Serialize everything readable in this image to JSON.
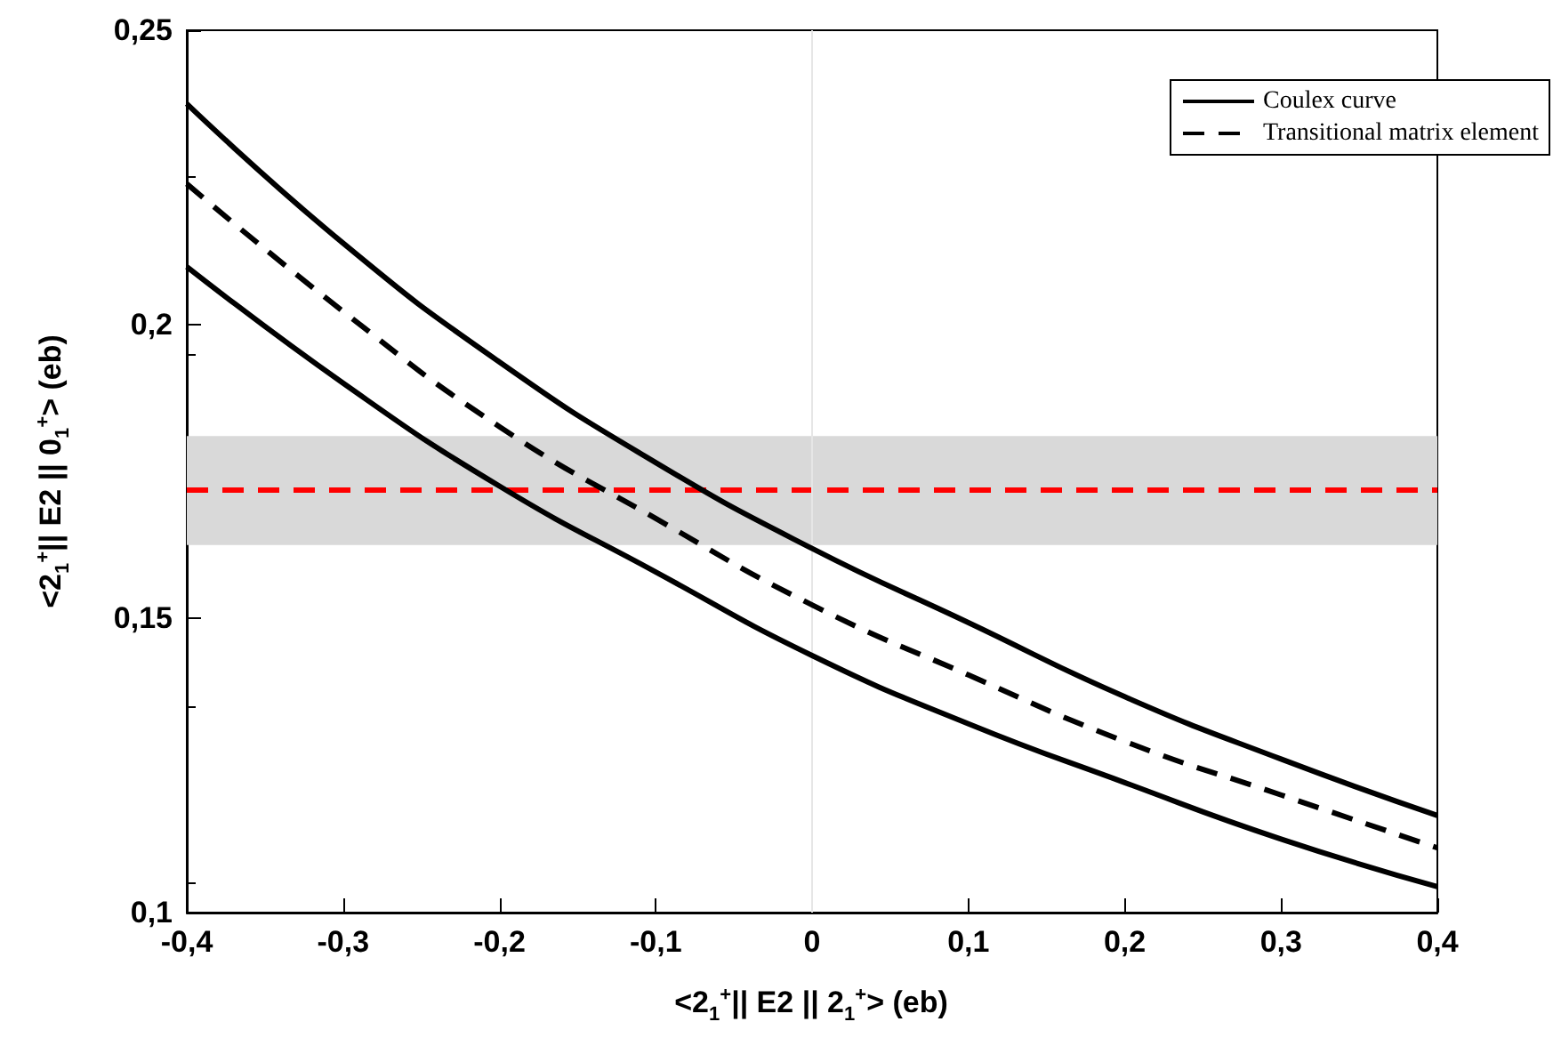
{
  "chart_data": {
    "type": "line",
    "xlabel": "<2$_{1}$$^{+}$|| E2 || 2$_{1}$$^{+}$> (eb)",
    "ylabel": "<2$_{1}$$^{+}$|| E2 || 0$_{1}$$^{+}$> (eb)",
    "x": [
      -0.4,
      -0.3,
      -0.2,
      -0.1,
      0,
      0.1,
      0.2,
      0.3,
      0.4
    ],
    "series": [
      {
        "name": "Coulex curve",
        "color": "#000000",
        "line_style": "solid",
        "values": [
          0.2375,
          0.2138,
          0.1936,
          0.1765,
          0.1619,
          0.1493,
          0.1367,
          0.1261,
          0.1165
        ]
      },
      {
        "name": "Transitional matrix element",
        "color": "#000000",
        "line_style": "dashed",
        "values": [
          0.2239,
          0.2022,
          0.1826,
          0.167,
          0.1523,
          0.1404,
          0.1291,
          0.12,
          0.111
        ]
      },
      {
        "color": "#000000",
        "line_style": "solid",
        "values": [
          0.2098,
          0.19,
          0.1725,
          0.1579,
          0.1437,
          0.1321,
          0.1221,
          0.1125,
          0.1044
        ]
      }
    ],
    "xlim": [
      -0.4,
      0.4
    ],
    "ylim": [
      0.1,
      0.25
    ],
    "xticks": [
      {
        "value": -0.4,
        "label": "-0,4"
      },
      {
        "value": -0.3,
        "label": "-0,3"
      },
      {
        "value": -0.2,
        "label": "-0,2"
      },
      {
        "value": -0.1,
        "label": "-0,1"
      },
      0,
      {
        "value": 0.1,
        "label": "0,1"
      },
      {
        "value": 0.2,
        "label": "0,2"
      },
      {
        "value": 0.3,
        "label": "0,3"
      },
      {
        "value": 0.4,
        "label": "0,4"
      }
    ],
    "yticks": [
      {
        "value": 0.1,
        "label": "0,1"
      },
      {
        "value": 0.15,
        "label": "0,15"
      },
      {
        "value": 0.2,
        "label": "0,2"
      },
      {
        "value": 0.25,
        "label": "0,25"
      }
    ],
    "ref_lines": [
      {
        "axis": "y",
        "value": 0.172,
        "color": "#ff0000",
        "line_style": "dashed"
      },
      {
        "axis": "x",
        "value": 0,
        "color": "#e6e6e6",
        "line_style": "solid"
      }
    ],
    "bands": [
      {
        "axis": "y",
        "from": 0.1625,
        "to": 0.181,
        "color": "#d9d9d9"
      }
    ],
    "grid": false,
    "legend": "top right",
    "marker": "none"
  }
}
